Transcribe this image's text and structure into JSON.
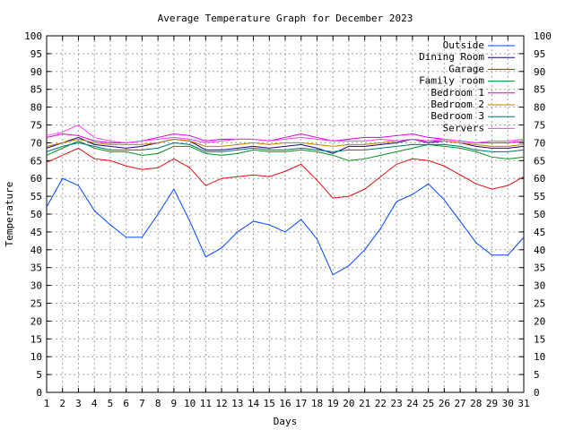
{
  "chart_data": {
    "type": "line",
    "title": "Average Temperature Graph for December 2023",
    "xlabel": "Days",
    "ylabel": "Temperature",
    "xlim": [
      1,
      31
    ],
    "ylim": [
      0,
      100
    ],
    "y_ticks": [
      0,
      5,
      10,
      15,
      20,
      25,
      30,
      35,
      40,
      45,
      50,
      55,
      60,
      65,
      70,
      75,
      80,
      85,
      90,
      95,
      100
    ],
    "x": [
      1,
      2,
      3,
      4,
      5,
      6,
      7,
      8,
      9,
      10,
      11,
      12,
      13,
      14,
      15,
      16,
      17,
      18,
      19,
      20,
      21,
      22,
      23,
      24,
      25,
      26,
      27,
      28,
      29,
      30,
      31
    ],
    "grid": true,
    "legend_position": "top-right",
    "series": [
      {
        "name": "Outside",
        "color": "#0047ff",
        "values": [
          52,
          60,
          58,
          51,
          47,
          43.5,
          43.5,
          50,
          57,
          48,
          38,
          40.5,
          45,
          48,
          47,
          45,
          48.5,
          43,
          33,
          35.5,
          40,
          46,
          53.5,
          55.5,
          58.5,
          54,
          48,
          42,
          38.5,
          38.5,
          43.5
        ]
      },
      {
        "name": "Dining Room",
        "color": "#200080",
        "values": [
          68.5,
          70,
          71.5,
          69.5,
          69,
          68.5,
          69,
          70,
          71,
          70.5,
          68,
          68,
          68.5,
          69,
          68.5,
          69,
          69.5,
          68.5,
          67,
          69,
          69,
          69.5,
          70,
          71,
          70,
          70.5,
          70,
          69,
          68.5,
          68.5,
          69
        ]
      },
      {
        "name": "Garage",
        "color": "#e01010",
        "values": [
          64.5,
          66.5,
          68.5,
          65.5,
          65,
          63.5,
          62.5,
          63,
          65.5,
          63,
          58,
          60,
          60.5,
          61,
          60.5,
          62,
          64,
          59.5,
          54.5,
          55,
          57,
          60.5,
          64,
          65.5,
          65,
          63.5,
          61,
          58.5,
          57,
          58,
          60.5
        ]
      },
      {
        "name": "Family room",
        "color": "#009020",
        "values": [
          66.5,
          68.5,
          70.5,
          68.5,
          67.5,
          67.5,
          66.5,
          67,
          69,
          69,
          67,
          66.5,
          67,
          68,
          67.5,
          67.5,
          68,
          67.5,
          66.5,
          65,
          65.5,
          66.5,
          67.5,
          68.5,
          69.5,
          69,
          68.5,
          67.5,
          66,
          65.5,
          66
        ]
      },
      {
        "name": "Bedroom 1",
        "color": "#d000d0",
        "values": [
          71.5,
          72.5,
          72,
          70.5,
          70,
          70,
          70.5,
          71.5,
          72.5,
          72,
          70.5,
          71,
          71,
          71,
          70.5,
          71.5,
          72.5,
          71.5,
          70.5,
          71,
          71.5,
          71.5,
          72,
          72.5,
          71.5,
          71,
          70.5,
          70,
          70,
          70,
          70.5
        ]
      },
      {
        "name": "Bedroom 2",
        "color": "#c08000",
        "values": [
          69,
          70,
          71,
          70,
          69.5,
          69.5,
          69.5,
          70,
          71,
          70.5,
          69,
          69,
          69.5,
          70,
          69.5,
          70,
          70,
          69.5,
          69,
          69.5,
          69.5,
          70,
          70.5,
          71,
          70.5,
          70.5,
          70,
          69.5,
          69,
          69,
          69.5
        ]
      },
      {
        "name": "Bedroom 3",
        "color": "#007070",
        "values": [
          67.5,
          69,
          70,
          69,
          68,
          68,
          68,
          68.5,
          70,
          69.5,
          67.5,
          67.5,
          68,
          68.5,
          68,
          68,
          68.5,
          68,
          67.5,
          68,
          68,
          68.5,
          69,
          69.5,
          69.5,
          69.5,
          69,
          68,
          67.5,
          67.5,
          68
        ]
      },
      {
        "name": "Servers",
        "color": "#ff40ff",
        "values": [
          72,
          73,
          75,
          71.5,
          70.5,
          70,
          70.5,
          71,
          71.5,
          71,
          70,
          70.5,
          71,
          71,
          70.5,
          71,
          71.5,
          71,
          70.5,
          70.5,
          70.5,
          71,
          70.5,
          71,
          70.5,
          71,
          70.5,
          70,
          70.5,
          70.5,
          71
        ]
      }
    ]
  }
}
